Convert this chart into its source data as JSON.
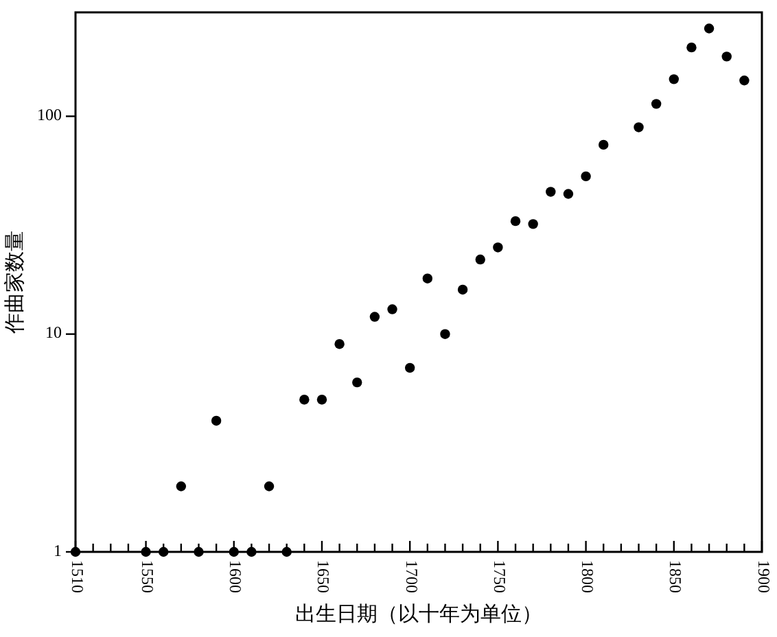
{
  "chart_data": {
    "type": "scatter",
    "xlabel": "出生日期（以十年为单位）",
    "ylabel": "作曲家数量",
    "log": "y",
    "marker": "circle",
    "grid": false,
    "x": [
      1510,
      1550,
      1560,
      1570,
      1580,
      1590,
      1600,
      1610,
      1620,
      1630,
      1640,
      1650,
      1660,
      1670,
      1680,
      1690,
      1700,
      1710,
      1720,
      1730,
      1740,
      1750,
      1760,
      1770,
      1780,
      1790,
      1800,
      1810,
      1830,
      1840,
      1850,
      1860,
      1870,
      1880,
      1890
    ],
    "series": [
      {
        "color": "#000000",
        "values": [
          1,
          1,
          1,
          2,
          1,
          4,
          1,
          1,
          2,
          1,
          5,
          5,
          9,
          6,
          12,
          13,
          7,
          18,
          10,
          16,
          22,
          25,
          33,
          32,
          45,
          44,
          53,
          74,
          89,
          114,
          148,
          207,
          253,
          188,
          146
        ]
      }
    ],
    "xlim": [
      1510,
      1900
    ],
    "ylim": [
      1,
      300
    ],
    "yticks": [
      1,
      10,
      100
    ],
    "xticks": [
      1510,
      {
        "value": 1520,
        "label": null
      },
      {
        "value": 1530,
        "label": null
      },
      {
        "value": 1540,
        "label": null
      },
      1550,
      {
        "value": 1560,
        "label": null
      },
      {
        "value": 1570,
        "label": null
      },
      {
        "value": 1580,
        "label": null
      },
      {
        "value": 1590,
        "label": null
      },
      1600,
      {
        "value": 1610,
        "label": null
      },
      {
        "value": 1620,
        "label": null
      },
      {
        "value": 1630,
        "label": null
      },
      {
        "value": 1640,
        "label": null
      },
      1650,
      {
        "value": 1660,
        "label": null
      },
      {
        "value": 1670,
        "label": null
      },
      {
        "value": 1680,
        "label": null
      },
      {
        "value": 1690,
        "label": null
      },
      1700,
      {
        "value": 1710,
        "label": null
      },
      {
        "value": 1720,
        "label": null
      },
      {
        "value": 1730,
        "label": null
      },
      {
        "value": 1740,
        "label": null
      },
      1750,
      {
        "value": 1760,
        "label": null
      },
      {
        "value": 1770,
        "label": null
      },
      {
        "value": 1780,
        "label": null
      },
      {
        "value": 1790,
        "label": null
      },
      1800,
      {
        "value": 1810,
        "label": null
      },
      {
        "value": 1820,
        "label": null
      },
      {
        "value": 1830,
        "label": null
      },
      {
        "value": 1840,
        "label": null
      },
      1850,
      {
        "value": 1860,
        "label": null
      },
      {
        "value": 1870,
        "label": null
      },
      {
        "value": 1880,
        "label": null
      },
      {
        "value": 1890,
        "label": null
      },
      1900
    ]
  }
}
